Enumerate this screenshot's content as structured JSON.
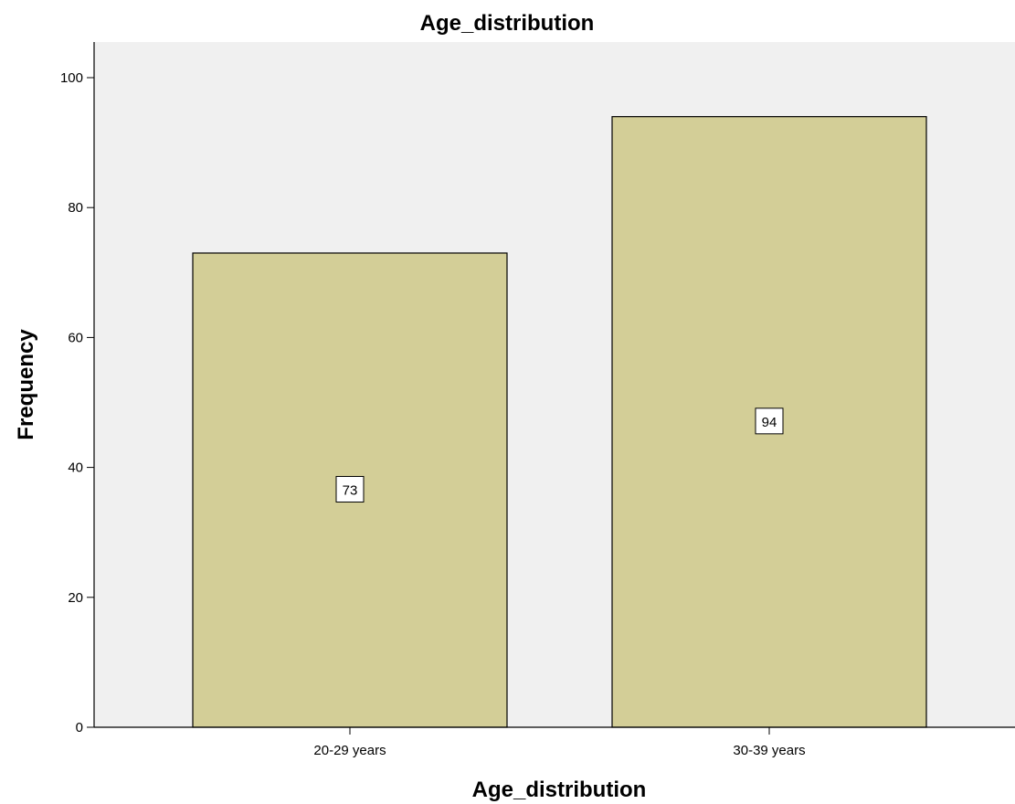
{
  "chart_data": {
    "type": "bar",
    "title": "Age_distribution",
    "xlabel": "Age_distribution",
    "ylabel": "Frequency",
    "categories": [
      "20-29 years",
      "30-39 years"
    ],
    "values": [
      73,
      94
    ],
    "data_labels": [
      "73",
      "94"
    ],
    "ylim": [
      0,
      105
    ],
    "yticks": [
      0,
      20,
      40,
      60,
      80,
      100
    ],
    "ytick_labels": [
      "0",
      "20",
      "40",
      "60",
      "80",
      "100"
    ],
    "grid": false,
    "legend": "none",
    "colors": {
      "plot_background": "#f0f0f0",
      "bar_fill": "#d3ce97",
      "bar_stroke": "#000000"
    }
  }
}
